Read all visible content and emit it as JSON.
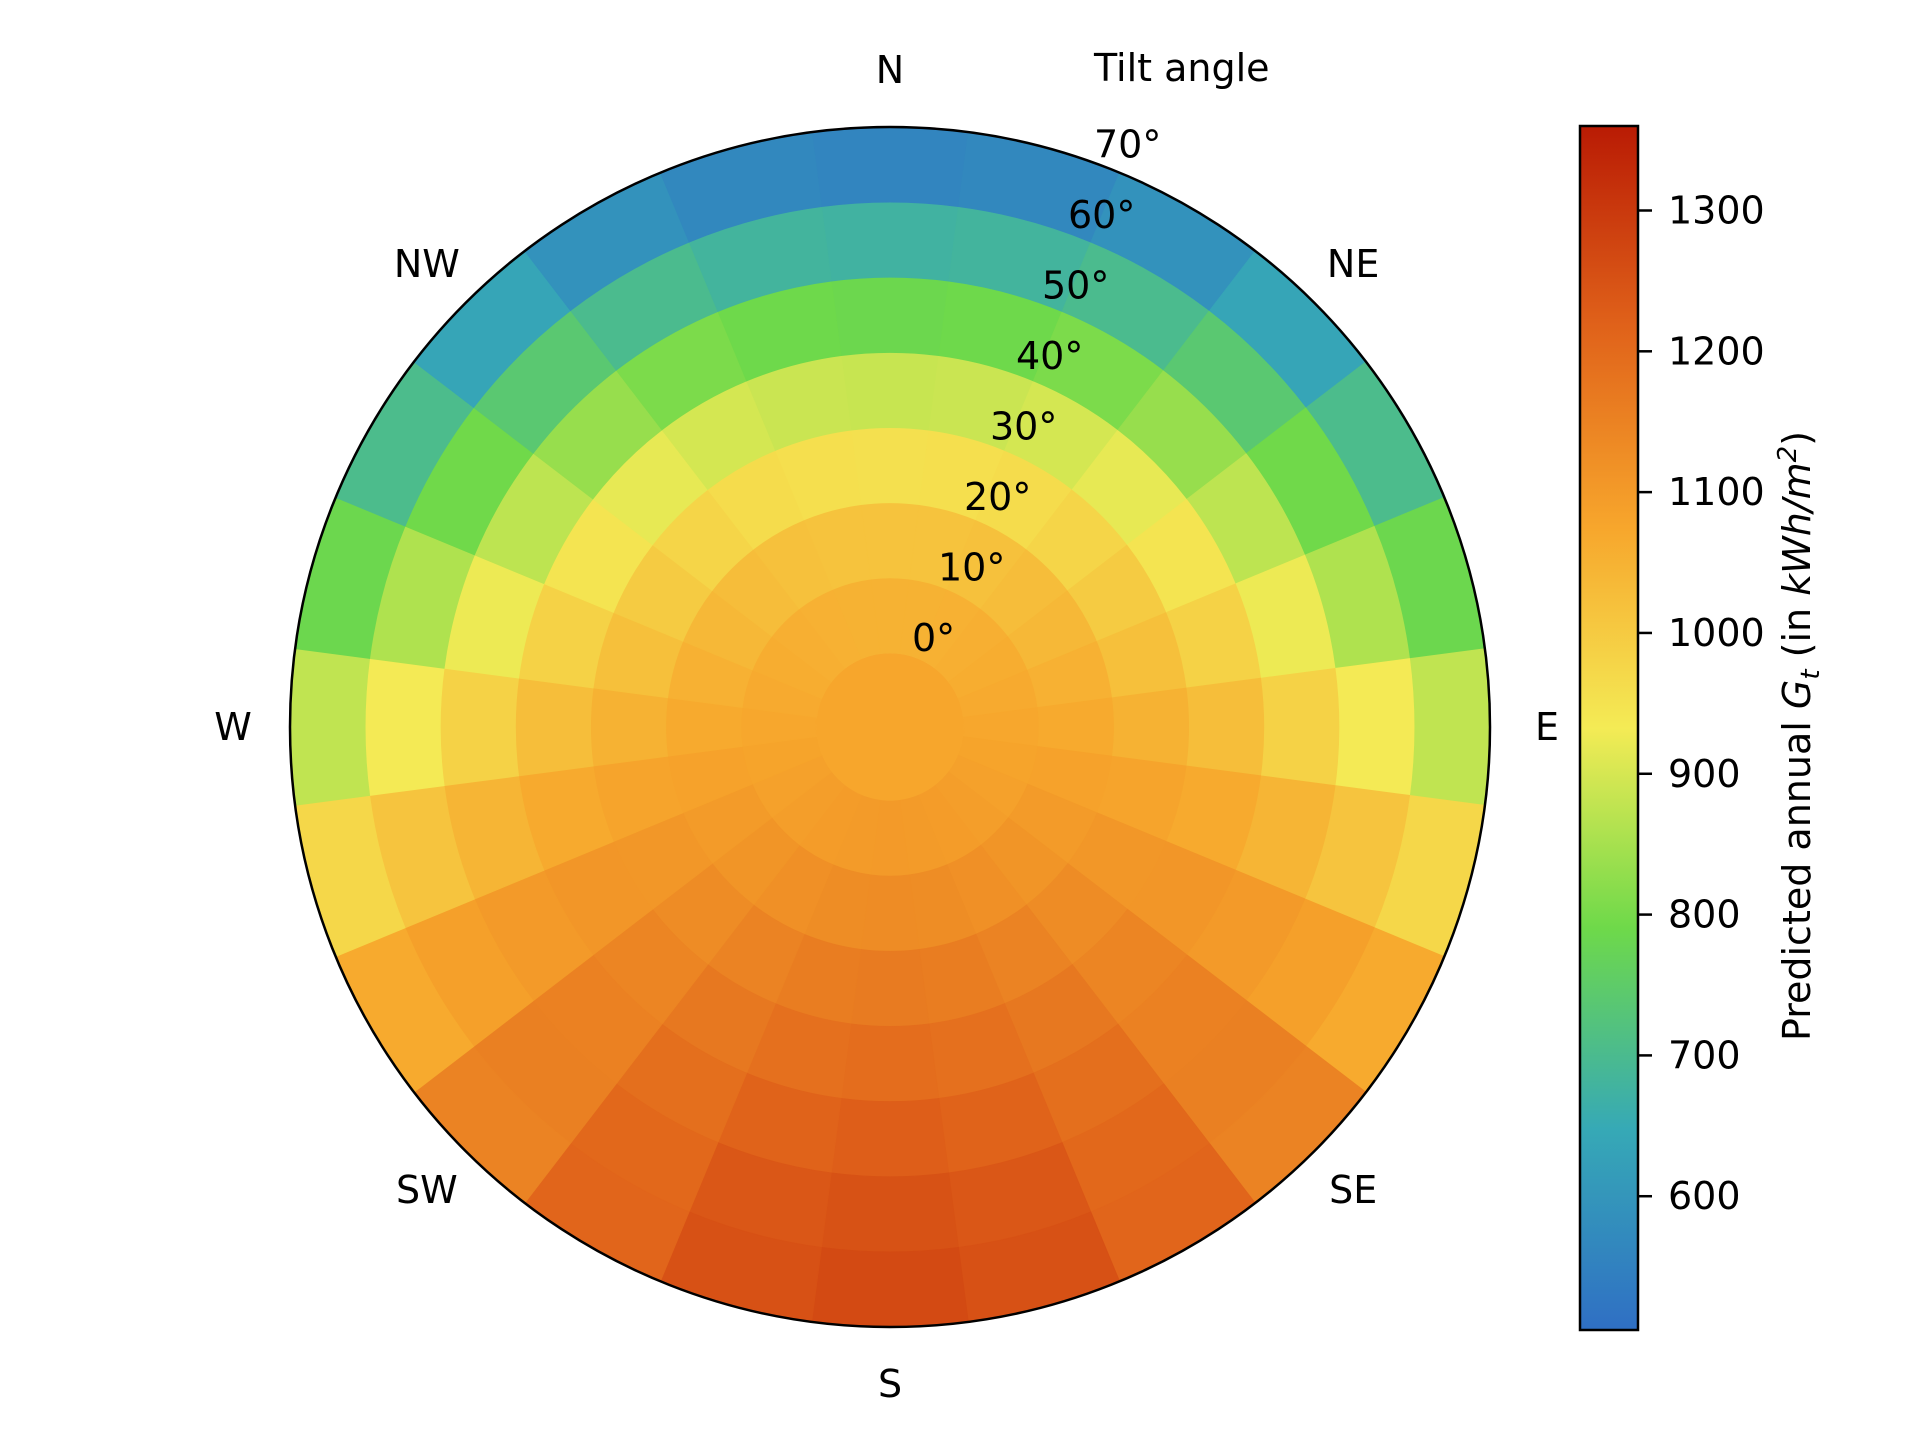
{
  "chart_data": {
    "type": "polar-heatmap",
    "directions": [
      "N",
      "NE",
      "E",
      "SE",
      "S",
      "SW",
      "W",
      "NW"
    ],
    "radial_axis": {
      "label": "Tilt angle",
      "tick_labels": [
        "0°",
        "10°",
        "20°",
        "30°",
        "40°",
        "50°",
        "60°",
        "70°"
      ],
      "range": [
        0,
        70
      ],
      "rings": [
        0,
        10,
        20,
        30,
        40,
        50,
        60,
        70
      ]
    },
    "angular_axis": {
      "azimuth_step_deg": 15,
      "zero_at": "N",
      "direction": "clockwise"
    },
    "value_model": {
      "description_free": true,
      "center_value": 1075,
      "south_gain_per_ring": [
        0,
        25,
        55,
        90,
        120,
        150,
        175,
        190
      ],
      "north_loss_per_ring": [
        0,
        25,
        60,
        120,
        190,
        290,
        400,
        515
      ]
    },
    "colorbar": {
      "label_prefix": "Predicted annual ",
      "label_var": "G",
      "label_sub": "t",
      "label_mid": " (in ",
      "label_units": "kWh/m",
      "label_sup": "2",
      "label_suffix": ")",
      "ticks": [
        "600",
        "700",
        "800",
        "900",
        "1000",
        "1100",
        "1200",
        "1300"
      ],
      "range": [
        505,
        1360
      ],
      "colors": [
        "#2f6fc4",
        "#36a9b6",
        "#6ed94a",
        "#f4eb55",
        "#f7a62c",
        "#e0621a",
        "#b91b04"
      ]
    }
  }
}
